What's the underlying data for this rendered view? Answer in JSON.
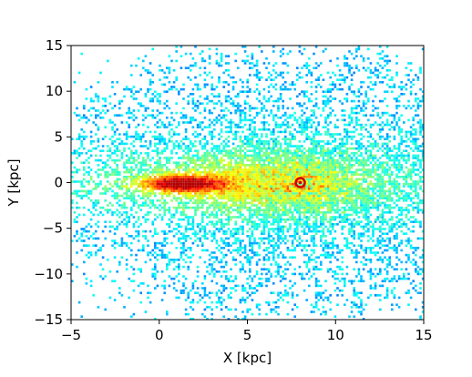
{
  "chart_data": {
    "type": "heatmap",
    "xlabel": "X [kpc]",
    "ylabel": "Y [kpc]",
    "xlim": [
      -5,
      15
    ],
    "ylim": [
      -15,
      15
    ],
    "xticks": [
      "−5",
      "0",
      "5",
      "10",
      "15"
    ],
    "yticks": [
      "15",
      "10",
      "5",
      "0",
      "−5",
      "−10",
      "−15"
    ],
    "grid": false,
    "colormap": "jet",
    "background": "#ffffff",
    "marker": {
      "x": 8.0,
      "y": 0.0,
      "color": "#cc0000"
    },
    "dense_region": {
      "x_range": [
        0,
        3
      ],
      "y": 0
    }
  }
}
